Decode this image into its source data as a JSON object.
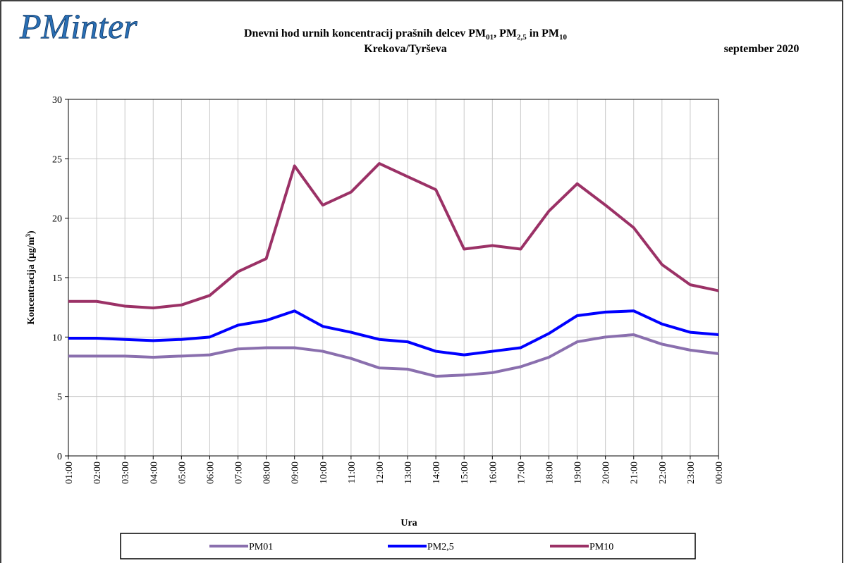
{
  "logo": "PMinter",
  "chart_data": {
    "type": "line",
    "title": [
      "Dnevni hod urnih koncentracij prašnih delcev PM",
      "01",
      ", PM",
      "2,5",
      " in PM",
      "10"
    ],
    "subtitle": "Krekova/Tyrševa",
    "date": "september 2020",
    "y_label": [
      "Koncentracija  (µg/m",
      "3",
      ")"
    ],
    "x_label": "Ura",
    "categories": [
      "01:00",
      "02:00",
      "03:00",
      "04:00",
      "05:00",
      "06:00",
      "07:00",
      "08:00",
      "09:00",
      "10:00",
      "11:00",
      "12:00",
      "13:00",
      "14:00",
      "15:00",
      "16:00",
      "17:00",
      "18:00",
      "19:00",
      "20:00",
      "21:00",
      "22:00",
      "23:00",
      "00:00"
    ],
    "series": [
      {
        "name": "PM01",
        "color": "#8a6fae",
        "values": [
          8.4,
          8.4,
          8.4,
          8.3,
          8.4,
          8.5,
          9.0,
          9.1,
          9.1,
          8.8,
          8.2,
          7.4,
          7.3,
          6.7,
          6.8,
          7.0,
          7.5,
          8.3,
          9.6,
          10.0,
          10.2,
          9.4,
          8.9,
          8.6
        ]
      },
      {
        "name": "PM2,5",
        "color": "#0000ff",
        "values": [
          9.9,
          9.9,
          9.8,
          9.7,
          9.8,
          10.0,
          11.0,
          11.4,
          12.2,
          10.9,
          10.4,
          9.8,
          9.6,
          8.8,
          8.5,
          8.8,
          9.1,
          10.3,
          11.8,
          12.1,
          12.2,
          11.1,
          10.4,
          10.2
        ]
      },
      {
        "name": "PM10",
        "color": "#9b3166",
        "values": [
          13.0,
          13.0,
          12.6,
          12.45,
          12.7,
          13.5,
          15.5,
          16.6,
          24.4,
          21.1,
          22.2,
          24.6,
          23.5,
          22.4,
          17.4,
          17.7,
          17.4,
          20.6,
          22.9,
          21.1,
          19.2,
          16.1,
          14.4,
          13.9
        ]
      }
    ],
    "ylim": [
      0,
      30
    ],
    "yticks": [
      0,
      5,
      10,
      15,
      20,
      25,
      30
    ],
    "grid": true
  }
}
